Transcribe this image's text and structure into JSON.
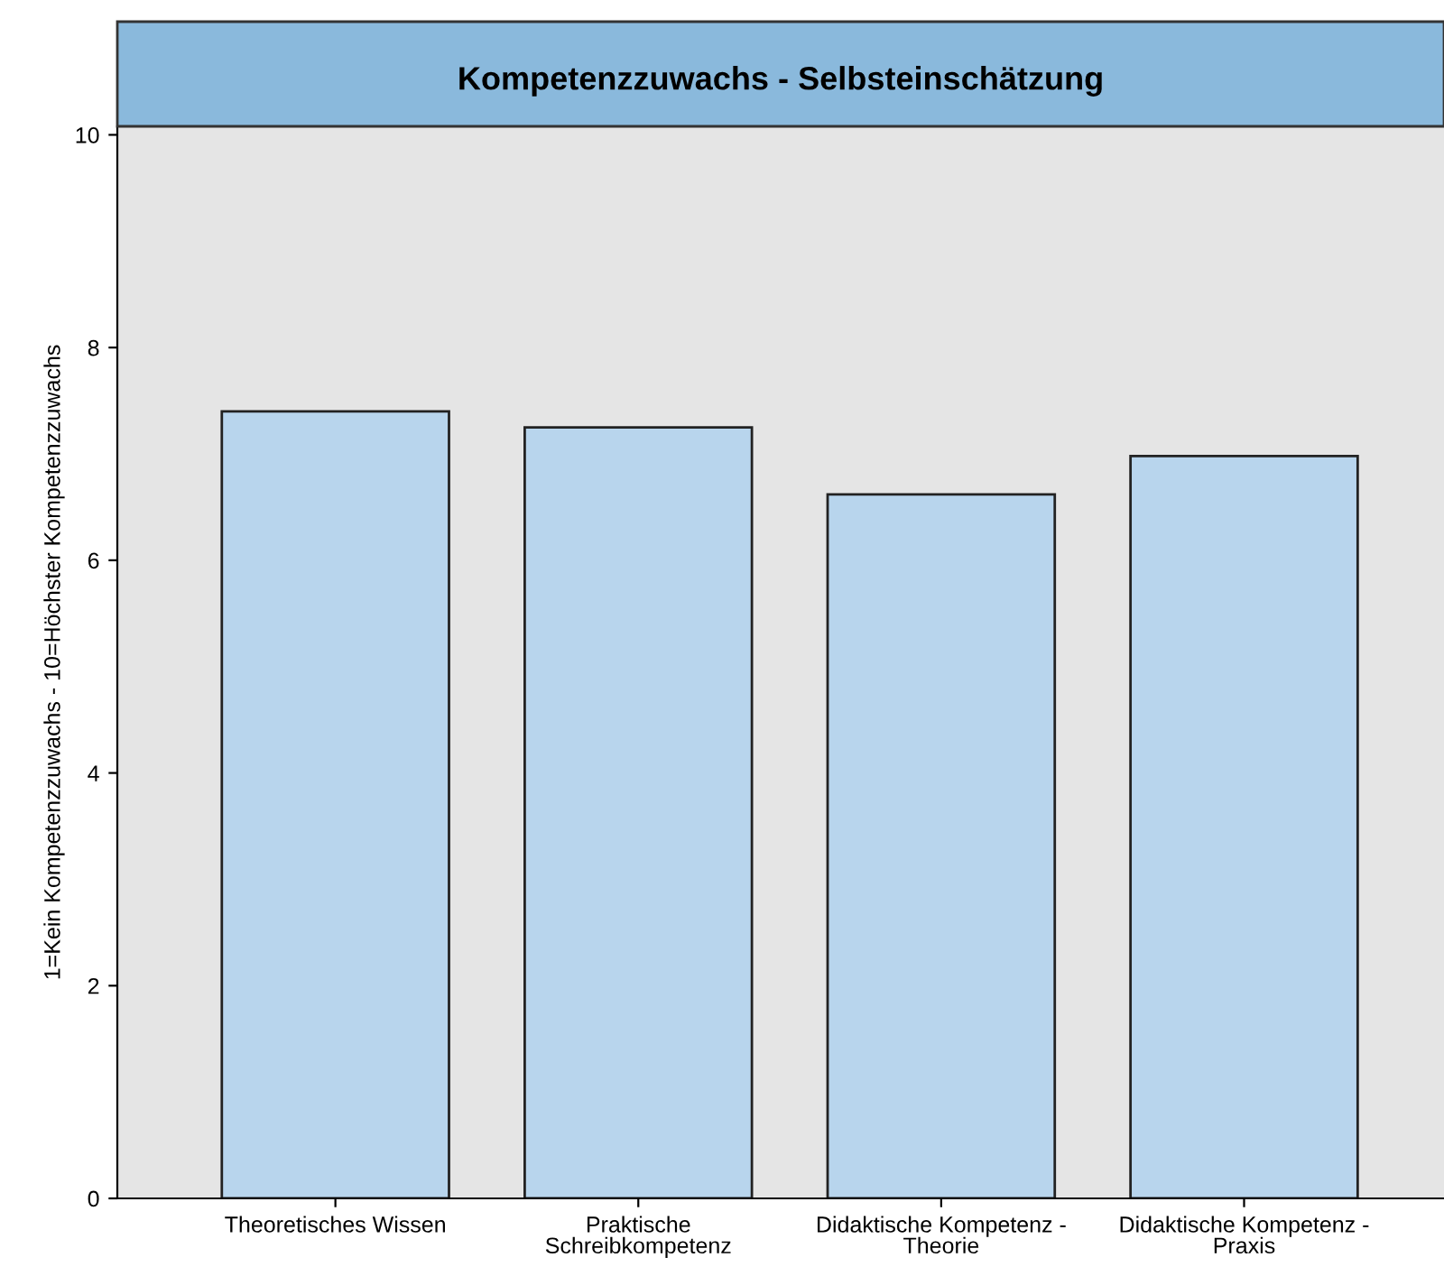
{
  "chart_data": {
    "type": "bar",
    "title": "Kompetenzzuwachs - Selbsteinschätzung",
    "ylabel": "1=Kein Kompetenzzuwachs - 10=Höchster Kompetenzzuwachs",
    "categories": [
      "Theoretisches Wissen",
      "Praktische\nSchreibkompetenz",
      "Didaktische Kompetenz -\nTheorie",
      "Didaktische Kompetenz -\nPraxis"
    ],
    "values": [
      7.4,
      7.25,
      6.62,
      6.98
    ],
    "color": "#b8d5ed",
    "ylim": [
      0,
      10.08
    ],
    "yticks": [
      0,
      2,
      4,
      6,
      8,
      10
    ],
    "grid": false
  }
}
